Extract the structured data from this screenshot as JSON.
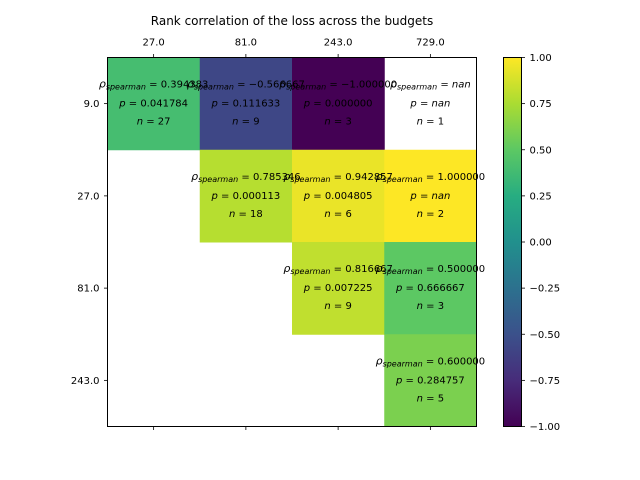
{
  "chart_data": {
    "type": "heatmap",
    "title": "Rank correlation of the loss across the budgets",
    "x_tick_labels": [
      "27.0",
      "81.0",
      "243.0",
      "729.0"
    ],
    "y_tick_labels": [
      "9.0",
      "27.0",
      "81.0",
      "243.0"
    ],
    "colormap": "viridis",
    "color_range": [
      -1.0,
      1.0
    ],
    "colorbar_ticks": [
      "1.00",
      "0.75",
      "0.50",
      "0.25",
      "0.00",
      "−0.25",
      "−0.50",
      "−0.75",
      "−1.00"
    ],
    "labels": {
      "rho": "ρ",
      "rho_sub": "spearman",
      "p": "p",
      "n": "n"
    },
    "cells": [
      {
        "row": 0,
        "col": 0,
        "rho": 0.394383,
        "rho_text": "0.394383",
        "p_text": "0.041784",
        "n_text": "27"
      },
      {
        "row": 0,
        "col": 1,
        "rho": -0.566667,
        "rho_text": "−0.566667",
        "p_text": "0.111633",
        "n_text": "9"
      },
      {
        "row": 0,
        "col": 2,
        "rho": -1.0,
        "rho_text": "−1.000000",
        "p_text": "0.000000",
        "n_text": "3"
      },
      {
        "row": 0,
        "col": 3,
        "rho": null,
        "rho_text": "nan",
        "p_text": "nan",
        "n_text": "1"
      },
      {
        "row": 1,
        "col": 1,
        "rho": 0.785346,
        "rho_text": "0.785346",
        "p_text": "0.000113",
        "n_text": "18"
      },
      {
        "row": 1,
        "col": 2,
        "rho": 0.942857,
        "rho_text": "0.942857",
        "p_text": "0.004805",
        "n_text": "6"
      },
      {
        "row": 1,
        "col": 3,
        "rho": 1.0,
        "rho_text": "1.000000",
        "p_text": "nan",
        "n_text": "2"
      },
      {
        "row": 2,
        "col": 2,
        "rho": 0.816667,
        "rho_text": "0.816667",
        "p_text": "0.007225",
        "n_text": "9"
      },
      {
        "row": 2,
        "col": 3,
        "rho": 0.5,
        "rho_text": "0.500000",
        "p_text": "0.666667",
        "n_text": "3"
      },
      {
        "row": 3,
        "col": 3,
        "rho": 0.6,
        "rho_text": "0.600000",
        "p_text": "0.284757",
        "n_text": "5"
      }
    ]
  }
}
